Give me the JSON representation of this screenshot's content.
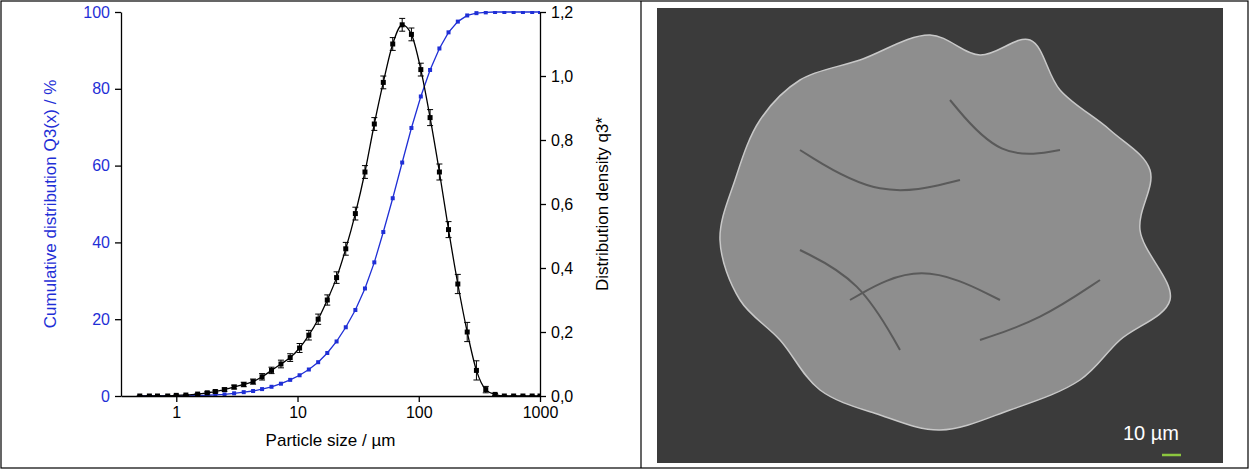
{
  "chart_data": {
    "type": "line",
    "xlabel": "Particle size / µm",
    "ylabel": "Cumulative distribution Q3(x) / %",
    "y2label": "Distribution density q3*",
    "log": "x",
    "grid": false,
    "x": [
      0.5,
      0.6,
      0.7,
      0.85,
      1.0,
      1.2,
      1.5,
      1.8,
      2.1,
      2.5,
      3,
      3.6,
      4.3,
      5.1,
      6.1,
      7.3,
      8.7,
      10.4,
      12.4,
      14.8,
      17.6,
      21,
      25,
      30,
      36,
      43,
      51,
      61,
      73,
      87,
      104,
      124,
      148,
      176,
      210,
      251,
      299,
      357,
      426,
      508,
      606,
      723,
      862,
      1000
    ],
    "xlim": [
      0.35,
      1000
    ],
    "xticks": [
      1,
      10,
      100,
      1000
    ],
    "ylim": [
      0,
      100
    ],
    "yticks": [
      0,
      20,
      40,
      60,
      80,
      100
    ],
    "y2lim": [
      0,
      1.2
    ],
    "y2ticks": [
      {
        "value": 0,
        "label": "0,0"
      },
      {
        "value": 0.2,
        "label": "0,2"
      },
      {
        "value": 0.4,
        "label": "0,4"
      },
      {
        "value": 0.6,
        "label": "0,6"
      },
      {
        "value": 0.8,
        "label": "0,8"
      },
      {
        "value": 1.0,
        "label": "1,0"
      },
      {
        "value": 1.2,
        "label": "1,2"
      }
    ],
    "series": [
      {
        "color": "#1f2fd6",
        "marker": "square",
        "line_style": "solid",
        "values": [
          0,
          0,
          0,
          0,
          0,
          0,
          0.1,
          0.2,
          0.3,
          0.4,
          0.7,
          1.0,
          1.3,
          1.8,
          2.4,
          3.2,
          4.2,
          5.4,
          6.9,
          8.8,
          11.2,
          14.2,
          17.9,
          22.4,
          28.0,
          34.8,
          42.7,
          51.5,
          60.8,
          69.8,
          78.0,
          84.9,
          90.5,
          94.7,
          97.5,
          99.1,
          99.7,
          99.9,
          100,
          100,
          100,
          100,
          100,
          100
        ]
      },
      {
        "color": "#000000",
        "marker": "square",
        "line_style": "solid",
        "axis": "y2",
        "values": [
          0,
          0,
          0,
          0,
          0.002,
          0.003,
          0.006,
          0.01,
          0.014,
          0.02,
          0.028,
          0.036,
          0.045,
          0.06,
          0.08,
          0.1,
          0.12,
          0.15,
          0.19,
          0.24,
          0.3,
          0.37,
          0.46,
          0.57,
          0.7,
          0.85,
          0.98,
          1.1,
          1.16,
          1.13,
          1.02,
          0.87,
          0.7,
          0.52,
          0.35,
          0.2,
          0.08,
          0.02,
          0.005,
          0,
          0,
          0,
          0,
          0
        ],
        "errors": [
          0,
          0,
          0,
          0,
          0.001,
          0.001,
          0.002,
          0.003,
          0.004,
          0.005,
          0.006,
          0.007,
          0.008,
          0.01,
          0.01,
          0.012,
          0.012,
          0.014,
          0.015,
          0.016,
          0.016,
          0.018,
          0.02,
          0.02,
          0.02,
          0.02,
          0.02,
          0.02,
          0.02,
          0.02,
          0.02,
          0.025,
          0.025,
          0.025,
          0.03,
          0.03,
          0.03,
          0.01,
          0.003,
          0,
          0,
          0,
          0,
          0
        ]
      }
    ]
  },
  "image": {
    "scale_bar_label": "10 µm"
  }
}
